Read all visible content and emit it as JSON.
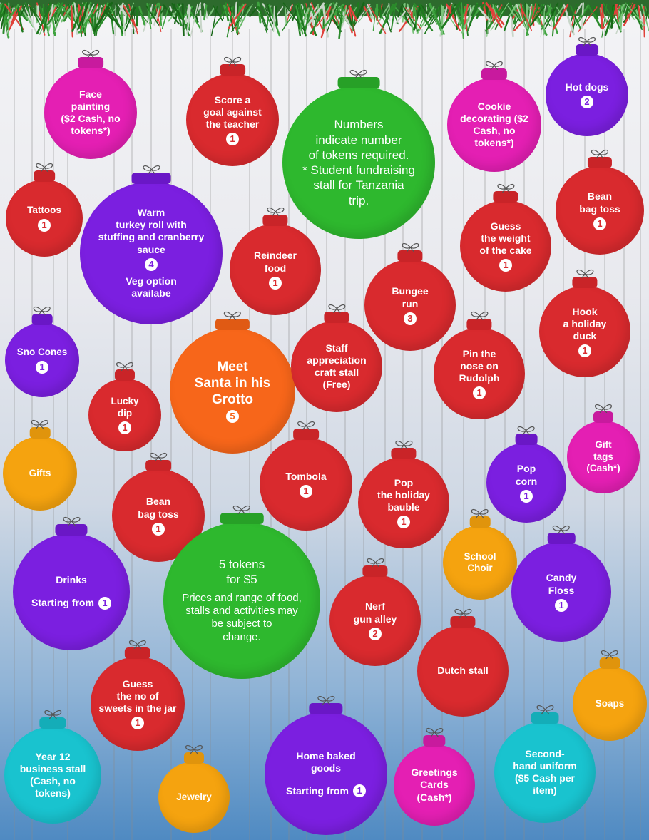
{
  "ornaments": {
    "face_painting": {
      "lines": "Face\npainting\n($2 Cash, no\ntokens*)"
    },
    "score_goal": {
      "lines": "Score a\ngoal against\nthe teacher",
      "tokens": "1"
    },
    "info": {
      "lines": "Numbers\nindicate number\nof tokens required.\n* Student fundraising\nstall for Tanzania\ntrip."
    },
    "cookie": {
      "lines": "Cookie\ndecorating ($2\nCash, no\ntokens*)"
    },
    "hot_dogs": {
      "lines": "Hot dogs",
      "tokens": "2"
    },
    "tattoos": {
      "lines": "Tattoos",
      "tokens": "1"
    },
    "turkey": {
      "lines": "Warm\nturkey roll with\nstuffing and cranberry\nsauce",
      "tokens": "4",
      "extra": "Veg option\navailabe"
    },
    "reindeer": {
      "lines": "Reindeer\nfood",
      "tokens": "1"
    },
    "guess_cake": {
      "lines": "Guess\nthe weight\nof the cake",
      "tokens": "1"
    },
    "bean_bag_right": {
      "lines": "Bean\nbag toss",
      "tokens": "1"
    },
    "bungee": {
      "lines": "Bungee\nrun",
      "tokens": "3"
    },
    "hook_duck": {
      "lines": "Hook\na holiday\nduck",
      "tokens": "1"
    },
    "sno_cones": {
      "lines": "Sno Cones",
      "tokens": "1"
    },
    "santa": {
      "lines": "Meet\nSanta in his\nGrotto",
      "tokens": "5"
    },
    "staff_craft": {
      "lines": "Staff\nappreciation\ncraft stall\n(Free)"
    },
    "pin_nose": {
      "lines": "Pin the\nnose on\nRudolph",
      "tokens": "1"
    },
    "lucky_dip": {
      "lines": "Lucky\ndip",
      "tokens": "1"
    },
    "gift_tags": {
      "lines": "Gift\ntags\n(Cash*)"
    },
    "gifts": {
      "lines": "Gifts"
    },
    "tombola": {
      "lines": "Tombola",
      "tokens": "1"
    },
    "popcorn": {
      "lines": "Pop\ncorn",
      "tokens": "1"
    },
    "bean_bag_left": {
      "lines": "Bean\nbag toss",
      "tokens": "1"
    },
    "pop_bauble": {
      "lines": "Pop\nthe holiday\nbauble",
      "tokens": "1"
    },
    "school_choir": {
      "lines": "School\nChoir"
    },
    "drinks": {
      "lines": "Drinks",
      "prefix": "Starting from",
      "tokens": "1"
    },
    "tokens_offer": {
      "lines": "5 tokens\nfor $5",
      "extra": "Prices and range of food,\nstalls and activities may\nbe subject to\nchange."
    },
    "candy_floss": {
      "lines": "Candy\nFloss",
      "tokens": "1"
    },
    "nerf": {
      "lines": "Nerf\ngun alley",
      "tokens": "2"
    },
    "dutch": {
      "lines": "Dutch stall"
    },
    "guess_sweets": {
      "lines": "Guess\nthe no of\nsweets in the jar",
      "tokens": "1"
    },
    "soaps": {
      "lines": "Soaps"
    },
    "year12": {
      "lines": "Year 12\nbusiness stall\n(Cash, no\ntokens)"
    },
    "jewelry": {
      "lines": "Jewelry"
    },
    "home_baked": {
      "lines": "Home baked\ngoods",
      "prefix": "Starting from",
      "tokens": "1"
    },
    "greetings": {
      "lines": "Greetings\nCards\n(Cash*)"
    },
    "uniform": {
      "lines": "Second-\nhand uniform\n($5 Cash per\nitem)"
    }
  },
  "colors": {
    "red": "#d92a2e",
    "magenta": "#e41fb3",
    "purple": "#7b1fe0",
    "green": "#2eb82e",
    "orange": "#f5a30f",
    "dark_orange": "#f7661a",
    "cyan": "#19c3cf"
  }
}
